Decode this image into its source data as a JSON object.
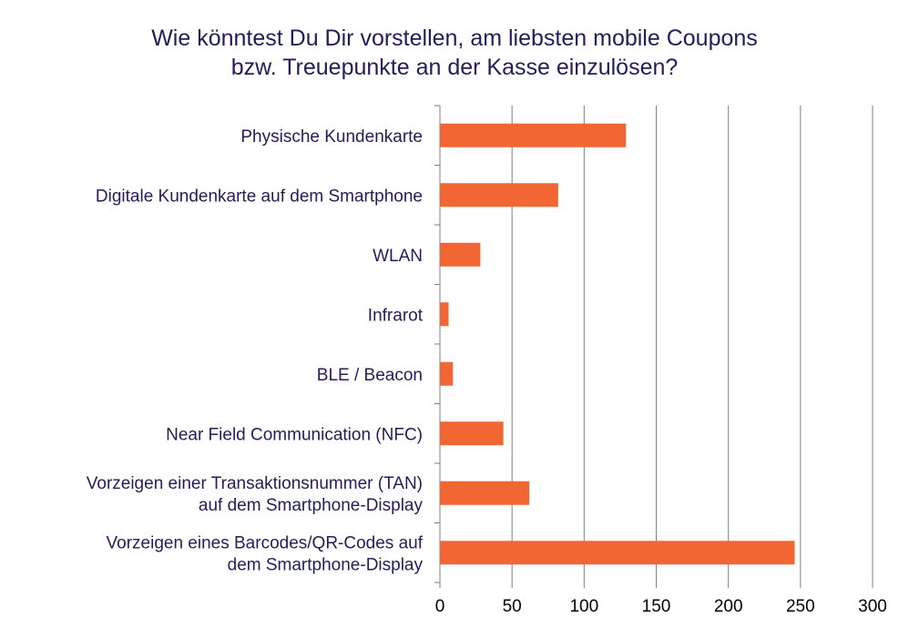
{
  "chart_data": {
    "type": "bar",
    "orientation": "horizontal",
    "title": [
      "Wie könntest Du Dir vorstellen, am liebsten mobile Coupons",
      "bzw. Treuepunkte an der Kasse einzulösen?"
    ],
    "categories": [
      [
        "Physische Kundenkarte"
      ],
      [
        "Digitale Kundenkarte auf dem Smartphone"
      ],
      [
        "WLAN"
      ],
      [
        "Infrarot"
      ],
      [
        "BLE / Beacon"
      ],
      [
        "Near Field Communication (NFC)"
      ],
      [
        "Vorzeigen einer Transaktionsnummer (TAN)",
        "auf dem Smartphone-Display"
      ],
      [
        "Vorzeigen eines Barcodes/QR-Codes auf",
        "dem Smartphone-Display"
      ]
    ],
    "values": [
      129,
      82,
      28,
      6,
      9,
      44,
      62,
      246
    ],
    "xlim": [
      0,
      300
    ],
    "xticks": [
      "0",
      "50",
      "100",
      "150",
      "200",
      "250",
      "300"
    ],
    "grid": true,
    "legend": "none",
    "colors": {
      "bar": "#f26633",
      "grid": "#7f7f7f",
      "title": "#1f1f5a"
    }
  }
}
